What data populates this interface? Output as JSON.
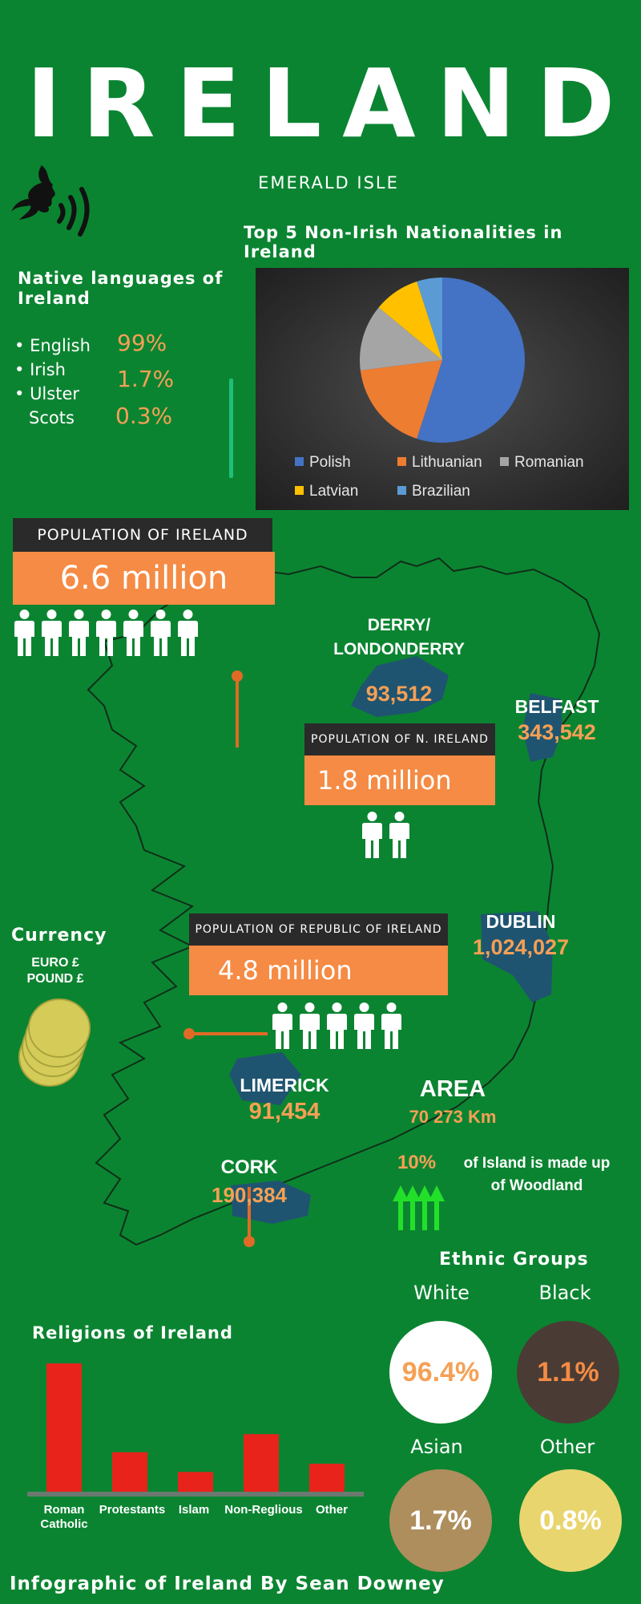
{
  "title": "IRELAND",
  "subtitle": "EMERALD ISLE",
  "pie_section": {
    "title": "Top 5 Non-Irish Nationalities in Ireland"
  },
  "chart_data": [
    {
      "type": "pie",
      "title": "",
      "categories": [
        "Polish",
        "Lithuanian",
        "Romanian",
        "Latvian",
        "Brazilian"
      ],
      "values": [
        55,
        18,
        13,
        9,
        5
      ],
      "colors": [
        "#4472c4",
        "#ed7d31",
        "#a5a5a5",
        "#ffc000",
        "#5b9bd5"
      ],
      "legend": "bottom"
    },
    {
      "type": "bar",
      "title": "Religions of Ireland",
      "categories": [
        "Roman Catholic",
        "Protestants",
        "Islam",
        "Non-Reglious",
        "Other"
      ],
      "values": [
        78,
        24,
        12,
        35,
        17
      ],
      "color": "#e8231b"
    }
  ],
  "languages": {
    "title": "Native languages of Ireland",
    "items": [
      {
        "name": "English",
        "pct": "99%"
      },
      {
        "name": "Irish",
        "pct": "1.7%"
      },
      {
        "name": "Ulster Scots",
        "name_line1": "Ulster",
        "name_line2": "Scots",
        "pct": "0.3%"
      }
    ]
  },
  "population": {
    "ireland_label": "POPULATION OF IRELAND",
    "ireland_value": "6.6 million",
    "ni_label": "POPULATION OF N. IRELAND",
    "ni_value": "1.8 million",
    "roi_label": "POPULATION OF REPUBLIC OF IRELAND",
    "roi_value": "4.8 million"
  },
  "cities": {
    "derry_name1": "DERRY/",
    "derry_name2": "LONDONDERRY",
    "derry_pop": "93,512",
    "belfast_name": "BELFAST",
    "belfast_pop": "343,542",
    "dublin_name": "DUBLIN",
    "dublin_pop": "1,024,027",
    "limerick_name": "LIMERICK",
    "limerick_pop": "91,454",
    "cork_name": "CORK",
    "cork_pop": "190,384"
  },
  "currency": {
    "title": "Currency",
    "line1": "EURO  £",
    "line2": "POUND £"
  },
  "area": {
    "title": "AREA",
    "value": "70 273 Km",
    "woodland_pct": "10%",
    "woodland_line1": "of Island is made up",
    "woodland_line2": "of Woodland"
  },
  "ethnic": {
    "title": "Ethnic Groups",
    "white_label": "White",
    "white_pct": "96.4%",
    "black_label": "Black",
    "black_pct": "1.1%",
    "asian_label": "Asian",
    "asian_pct": "1.7%",
    "other_label": "Other",
    "other_pct": "0.8%"
  },
  "religions": {
    "title": "Religions of Ireland",
    "labels": [
      "Roman Catholic",
      "Protestants",
      "Islam",
      "Non-Reglious",
      "Other"
    ]
  },
  "footer": "Infographic of Ireland By Sean Downey",
  "colors": {
    "background": "#0b8431",
    "orange": "#f58b44",
    "accent_text": "#f5a055",
    "city_blob": "#1f5470",
    "bar_red": "#e8231b"
  },
  "icons": [
    "speaking-head-icon",
    "person-icon",
    "coin-stack-icon",
    "tree-icon"
  ]
}
